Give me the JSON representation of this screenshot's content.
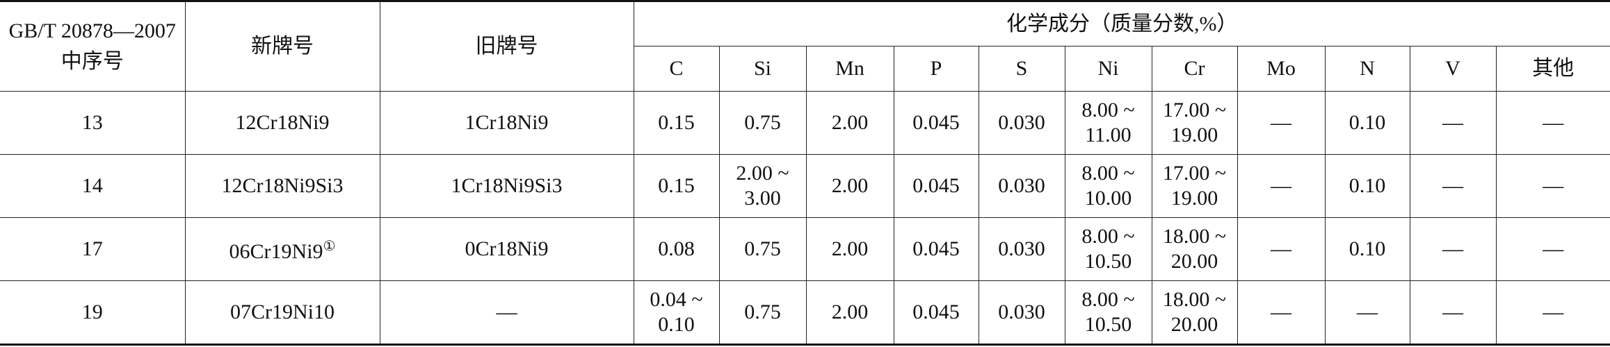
{
  "table": {
    "header": {
      "index": [
        "GB/T 20878—2007",
        "中序号"
      ],
      "new_grade": "新牌号",
      "old_grade": "旧牌号",
      "composition": "化学成分（质量分数,%）",
      "elements": [
        "C",
        "Si",
        "Mn",
        "P",
        "S",
        "Ni",
        "Cr",
        "Mo",
        "N",
        "V",
        "其他"
      ]
    },
    "rows": [
      [
        "13",
        "12Cr18Ni9",
        "1Cr18Ni9",
        "0.15",
        "0.75",
        "2.00",
        "0.045",
        "0.030",
        [
          "8.00 ~",
          "11.00"
        ],
        [
          "17.00 ~",
          "19.00"
        ],
        "—",
        "0.10",
        "—",
        "—"
      ],
      [
        "14",
        "12Cr18Ni9Si3",
        "1Cr18Ni9Si3",
        "0.15",
        [
          "2.00 ~",
          "3.00"
        ],
        "2.00",
        "0.045",
        "0.030",
        [
          "8.00 ~",
          "10.00"
        ],
        [
          "17.00 ~",
          "19.00"
        ],
        "—",
        "0.10",
        "—",
        "—"
      ],
      [
        "17",
        {
          "text": "06Cr19Ni9",
          "note": "①"
        },
        "0Cr18Ni9",
        "0.08",
        "0.75",
        "2.00",
        "0.045",
        "0.030",
        [
          "8.00 ~",
          "10.50"
        ],
        [
          "18.00 ~",
          "20.00"
        ],
        "—",
        "0.10",
        "—",
        "—"
      ],
      [
        "19",
        "07Cr19Ni10",
        "—",
        [
          "0.04 ~",
          "0.10"
        ],
        "0.75",
        "2.00",
        "0.045",
        "0.030",
        [
          "8.00 ~",
          "10.50"
        ],
        [
          "18.00 ~",
          "20.00"
        ],
        "—",
        "—",
        "—",
        "—"
      ]
    ]
  }
}
